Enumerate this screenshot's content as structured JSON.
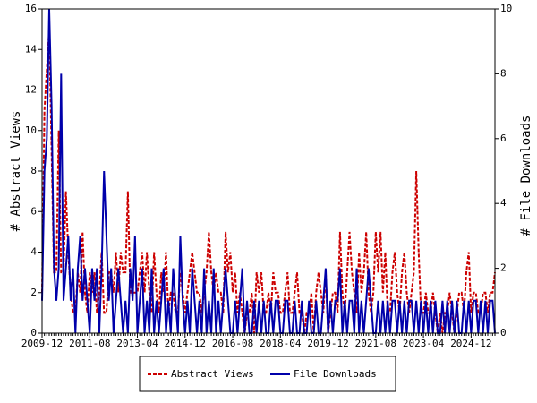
{
  "chart_data": {
    "type": "line",
    "y_label": "# Abstract Views",
    "y2_label": "# File Downloads",
    "categories": [
      "2009-12",
      null,
      null,
      null,
      null,
      null,
      null,
      null,
      null,
      null,
      null,
      null,
      null,
      null,
      null,
      null,
      null,
      null,
      null,
      null,
      "2011-08",
      null,
      null,
      null,
      null,
      null,
      null,
      null,
      null,
      null,
      null,
      null,
      null,
      null,
      null,
      null,
      null,
      null,
      null,
      null,
      "2013-04",
      null,
      null,
      null,
      null,
      null,
      null,
      null,
      null,
      null,
      null,
      null,
      null,
      null,
      null,
      null,
      null,
      null,
      null,
      null,
      "2014-12",
      null,
      null,
      null,
      null,
      null,
      null,
      null,
      null,
      null,
      null,
      null,
      null,
      null,
      null,
      null,
      null,
      null,
      null,
      null,
      "2016-08",
      null,
      null,
      null,
      null,
      null,
      null,
      null,
      null,
      null,
      null,
      null,
      null,
      null,
      null,
      null,
      null,
      null,
      null,
      null,
      "2018-04",
      null,
      null,
      null,
      null,
      null,
      null,
      null,
      null,
      null,
      null,
      null,
      null,
      null,
      null,
      null,
      null,
      null,
      null,
      null,
      "2019-12",
      null,
      null,
      null,
      null,
      null,
      null,
      null,
      null,
      null,
      null,
      null,
      null,
      null,
      null,
      null,
      null,
      null,
      null,
      null,
      "2021-08",
      null,
      null,
      null,
      null,
      null,
      null,
      null,
      null,
      null,
      null,
      null,
      null,
      null,
      null,
      null,
      null,
      null,
      null,
      null,
      "2023-04",
      null,
      null,
      null,
      null,
      null,
      null,
      null,
      null,
      null,
      null,
      null,
      null,
      null,
      null,
      null,
      null,
      null,
      null,
      null,
      "2024-12",
      null,
      null,
      null,
      null,
      null,
      null,
      null,
      null,
      null,
      null
    ],
    "series": [
      {
        "name": "Abstract Views",
        "color": "#cc0000",
        "dashed": true,
        "values": [
          2,
          11,
          13,
          15,
          9,
          3,
          3,
          10,
          3,
          3,
          7,
          4,
          2,
          1,
          1,
          3,
          2,
          5,
          2,
          1,
          3,
          2,
          3,
          1,
          2,
          4,
          1,
          1,
          3,
          3,
          2,
          4,
          2,
          4,
          3,
          3,
          7,
          2,
          2,
          2,
          2,
          3,
          4,
          2,
          4,
          2,
          1,
          4,
          2,
          1,
          3,
          2,
          4,
          1,
          2,
          2,
          1,
          1,
          3,
          2,
          1,
          2,
          3,
          4,
          3,
          2,
          2,
          1,
          2,
          3,
          5,
          3,
          2,
          3,
          2,
          2,
          1,
          5,
          3,
          4,
          2,
          3,
          1,
          2,
          1,
          0,
          1,
          1,
          2,
          0,
          3,
          2,
          3,
          1,
          1,
          2,
          1,
          3,
          2,
          2,
          1,
          1,
          2,
          3,
          1,
          1,
          2,
          3,
          1,
          1,
          0,
          1,
          1,
          2,
          0,
          2,
          3,
          2,
          1,
          3,
          0,
          1,
          2,
          2,
          1,
          5,
          2,
          1,
          3,
          5,
          3,
          2,
          1,
          4,
          2,
          3,
          5,
          2,
          1,
          2,
          5,
          3,
          5,
          2,
          4,
          1,
          1,
          3,
          4,
          2,
          1,
          3,
          4,
          2,
          1,
          2,
          3,
          8,
          4,
          1,
          1,
          2,
          1,
          1,
          2,
          1,
          0,
          1,
          0,
          1,
          1,
          2,
          1,
          0,
          1,
          2,
          2,
          1,
          3,
          4,
          1,
          2,
          2,
          1,
          1,
          2,
          2,
          1,
          2,
          2,
          3
        ]
      },
      {
        "name": "File Downloads",
        "color": "#0000aa",
        "axis": "y2",
        "values": [
          1,
          5,
          6,
          10,
          7,
          2,
          1,
          2,
          8,
          1,
          2,
          3,
          1,
          2,
          0,
          2,
          3,
          1,
          2,
          1,
          0,
          2,
          1,
          2,
          0,
          2,
          5,
          3,
          1,
          2,
          0,
          1,
          2,
          1,
          0,
          1,
          0,
          2,
          1,
          3,
          0,
          1,
          2,
          0,
          1,
          0,
          2,
          0,
          1,
          0,
          1,
          2,
          0,
          1,
          0,
          2,
          1,
          0,
          3,
          1,
          0,
          1,
          0,
          2,
          1,
          0,
          1,
          0,
          2,
          0,
          1,
          0,
          2,
          0,
          1,
          0,
          1,
          2,
          1,
          0,
          0,
          1,
          0,
          1,
          2,
          0,
          1,
          0,
          0,
          1,
          0,
          1,
          0,
          1,
          0,
          0,
          1,
          0,
          1,
          1,
          0,
          0,
          1,
          1,
          0,
          0,
          1,
          0,
          0,
          1,
          0,
          0,
          1,
          0,
          0,
          1,
          0,
          0,
          1,
          2,
          0,
          1,
          0,
          1,
          1,
          2,
          0,
          1,
          0,
          1,
          1,
          0,
          2,
          0,
          1,
          0,
          1,
          2,
          1,
          0,
          0,
          1,
          0,
          1,
          0,
          1,
          0,
          1,
          1,
          0,
          1,
          0,
          1,
          0,
          1,
          1,
          0,
          1,
          0,
          1,
          0,
          1,
          0,
          1,
          0,
          1,
          0,
          0,
          1,
          0,
          1,
          0,
          1,
          0,
          1,
          0,
          0,
          1,
          0,
          1,
          0,
          1,
          1,
          0,
          1,
          0,
          1,
          0,
          1,
          1,
          0
        ]
      }
    ],
    "ylim": [
      0,
      16
    ],
    "yticks": [
      0,
      2,
      4,
      6,
      8,
      10,
      12,
      14,
      16
    ],
    "y2lim": [
      0,
      10
    ],
    "y2ticks": [
      0,
      2,
      4,
      6,
      8,
      10
    ],
    "legend": "bottom"
  }
}
